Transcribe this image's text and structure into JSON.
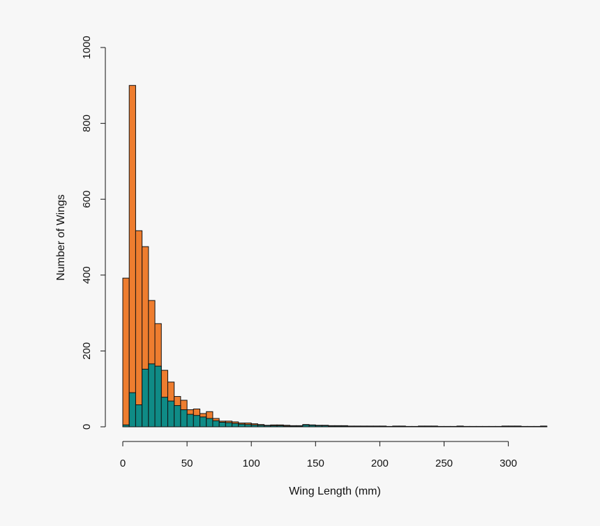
{
  "chart_data": {
    "type": "bar",
    "xlabel": "Wing Length (mm)",
    "ylabel": "Number of Wings",
    "xlim": [
      0,
      330
    ],
    "ylim": [
      0,
      1000
    ],
    "bin_width": 5,
    "grid": false,
    "colors": {
      "series_1": "#ee7d2f",
      "series_2": "#0f8b86",
      "background": "#f7f7f7"
    },
    "x_ticks": [
      0,
      50,
      100,
      150,
      200,
      250,
      300
    ],
    "y_ticks": [
      0,
      200,
      400,
      600,
      800,
      1000
    ],
    "x_tick_labels": [
      "0",
      "50",
      "100",
      "150",
      "200",
      "250",
      "300"
    ],
    "y_tick_labels": [
      "0",
      "200",
      "400",
      "600",
      "800",
      "1000"
    ],
    "x": [
      0,
      5,
      10,
      15,
      20,
      25,
      30,
      35,
      40,
      45,
      50,
      55,
      60,
      65,
      70,
      75,
      80,
      85,
      90,
      95,
      100,
      105,
      110,
      115,
      120,
      125,
      130,
      135,
      140,
      145,
      150,
      155,
      160,
      165,
      170,
      175,
      180,
      185,
      190,
      195,
      200,
      205,
      210,
      215,
      220,
      225,
      230,
      235,
      240,
      245,
      250,
      255,
      260,
      265,
      270,
      275,
      280,
      285,
      290,
      295,
      300,
      305,
      310,
      315,
      320,
      325
    ],
    "series": [
      {
        "values": [
          392,
          900,
          517,
          475,
          333,
          272,
          149,
          118,
          80,
          70,
          45,
          47,
          35,
          40,
          22,
          15,
          15,
          13,
          10,
          10,
          8,
          6,
          4,
          5,
          5,
          4,
          3,
          3,
          6,
          5,
          4,
          4,
          3,
          3,
          3,
          2,
          2,
          2,
          2,
          2,
          2,
          1,
          2,
          2,
          1,
          1,
          2,
          2,
          2,
          1,
          1,
          1,
          2,
          1,
          1,
          1,
          1,
          1,
          1,
          2,
          2,
          2,
          1,
          1,
          1,
          2
        ]
      },
      {
        "values": [
          5,
          90,
          58,
          152,
          166,
          160,
          78,
          68,
          56,
          45,
          33,
          30,
          26,
          22,
          16,
          12,
          11,
          9,
          7,
          6,
          5,
          4,
          3,
          3,
          3,
          2,
          2,
          2,
          5,
          4,
          3,
          3,
          2,
          2,
          2,
          1,
          1,
          1,
          1,
          1,
          1,
          1,
          1,
          1,
          1,
          1,
          1,
          1,
          1,
          1,
          1,
          1,
          1,
          1,
          1,
          1,
          1,
          1,
          1,
          1,
          1,
          1,
          1,
          1,
          1,
          1
        ]
      }
    ]
  }
}
